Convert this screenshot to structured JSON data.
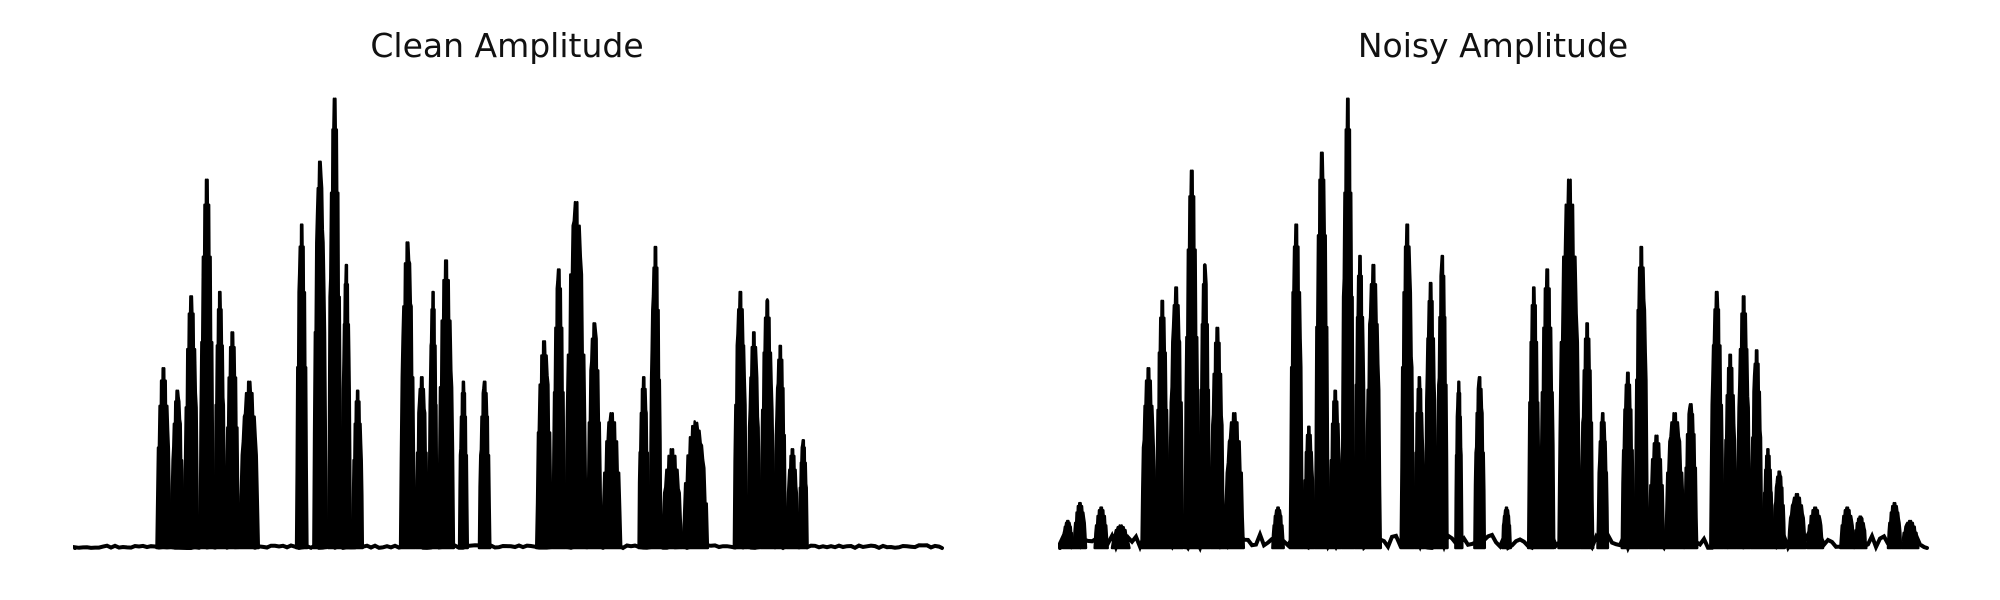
{
  "chart_data": [
    {
      "type": "area",
      "title": "Clean Amplitude",
      "xlabel": "",
      "ylabel": "",
      "axes_visible": false,
      "grid": false,
      "color": "#000000",
      "xlim": [
        0,
        1
      ],
      "ylim": [
        0,
        1
      ],
      "noise_floor": 0.006,
      "segments": [
        [
          0.094,
          0.11,
          0.4
        ],
        [
          0.111,
          0.125,
          0.35
        ],
        [
          0.126,
          0.142,
          0.56
        ],
        [
          0.144,
          0.16,
          0.82
        ],
        [
          0.161,
          0.173,
          0.57
        ],
        [
          0.174,
          0.189,
          0.48
        ],
        [
          0.19,
          0.212,
          0.37
        ],
        [
          0.255,
          0.268,
          0.72
        ],
        [
          0.275,
          0.29,
          0.86
        ],
        [
          0.292,
          0.307,
          1.0
        ],
        [
          0.308,
          0.318,
          0.63
        ],
        [
          0.32,
          0.332,
          0.35
        ],
        [
          0.375,
          0.392,
          0.68
        ],
        [
          0.393,
          0.407,
          0.38
        ],
        [
          0.408,
          0.418,
          0.57
        ],
        [
          0.419,
          0.437,
          0.64
        ],
        [
          0.443,
          0.453,
          0.37
        ],
        [
          0.466,
          0.479,
          0.37
        ],
        [
          0.532,
          0.55,
          0.46
        ],
        [
          0.551,
          0.565,
          0.62
        ],
        [
          0.566,
          0.59,
          0.77
        ],
        [
          0.591,
          0.607,
          0.5
        ],
        [
          0.608,
          0.63,
          0.3
        ],
        [
          0.65,
          0.662,
          0.38
        ],
        [
          0.663,
          0.676,
          0.67
        ],
        [
          0.677,
          0.7,
          0.22
        ],
        [
          0.701,
          0.73,
          0.28
        ],
        [
          0.76,
          0.775,
          0.57
        ],
        [
          0.776,
          0.79,
          0.48
        ],
        [
          0.791,
          0.806,
          0.55
        ],
        [
          0.807,
          0.82,
          0.45
        ],
        [
          0.821,
          0.834,
          0.22
        ],
        [
          0.835,
          0.845,
          0.24
        ]
      ]
    },
    {
      "type": "area",
      "title": "Noisy Amplitude",
      "xlabel": "",
      "ylabel": "",
      "axes_visible": false,
      "grid": false,
      "color": "#000000",
      "xlim": [
        0,
        1
      ],
      "ylim": [
        0,
        1
      ],
      "noise_floor": 0.03,
      "segments": [
        [
          0.003,
          0.015,
          0.06
        ],
        [
          0.016,
          0.03,
          0.1
        ],
        [
          0.04,
          0.055,
          0.09
        ],
        [
          0.06,
          0.08,
          0.05
        ],
        [
          0.094,
          0.11,
          0.4
        ],
        [
          0.111,
          0.125,
          0.55
        ],
        [
          0.126,
          0.142,
          0.58
        ],
        [
          0.144,
          0.16,
          0.84
        ],
        [
          0.161,
          0.173,
          0.63
        ],
        [
          0.174,
          0.189,
          0.49
        ],
        [
          0.19,
          0.212,
          0.3
        ],
        [
          0.245,
          0.258,
          0.09
        ],
        [
          0.265,
          0.28,
          0.72
        ],
        [
          0.281,
          0.293,
          0.27
        ],
        [
          0.294,
          0.31,
          0.88
        ],
        [
          0.311,
          0.324,
          0.35
        ],
        [
          0.325,
          0.339,
          1.0
        ],
        [
          0.34,
          0.352,
          0.65
        ],
        [
          0.353,
          0.37,
          0.63
        ],
        [
          0.393,
          0.408,
          0.72
        ],
        [
          0.409,
          0.42,
          0.38
        ],
        [
          0.421,
          0.434,
          0.59
        ],
        [
          0.435,
          0.447,
          0.65
        ],
        [
          0.456,
          0.464,
          0.37
        ],
        [
          0.478,
          0.49,
          0.38
        ],
        [
          0.51,
          0.52,
          0.09
        ],
        [
          0.54,
          0.553,
          0.58
        ],
        [
          0.554,
          0.57,
          0.62
        ],
        [
          0.575,
          0.6,
          0.82
        ],
        [
          0.601,
          0.615,
          0.5
        ],
        [
          0.62,
          0.632,
          0.3
        ],
        [
          0.648,
          0.662,
          0.39
        ],
        [
          0.663,
          0.678,
          0.67
        ],
        [
          0.679,
          0.697,
          0.25
        ],
        [
          0.698,
          0.72,
          0.3
        ],
        [
          0.72,
          0.735,
          0.32
        ],
        [
          0.75,
          0.765,
          0.57
        ],
        [
          0.766,
          0.78,
          0.43
        ],
        [
          0.781,
          0.796,
          0.56
        ],
        [
          0.797,
          0.81,
          0.44
        ],
        [
          0.811,
          0.822,
          0.22
        ],
        [
          0.823,
          0.836,
          0.17
        ],
        [
          0.84,
          0.86,
          0.12
        ],
        [
          0.862,
          0.88,
          0.09
        ],
        [
          0.9,
          0.916,
          0.09
        ],
        [
          0.916,
          0.93,
          0.07
        ],
        [
          0.955,
          0.97,
          0.1
        ],
        [
          0.971,
          0.99,
          0.06
        ]
      ]
    }
  ]
}
